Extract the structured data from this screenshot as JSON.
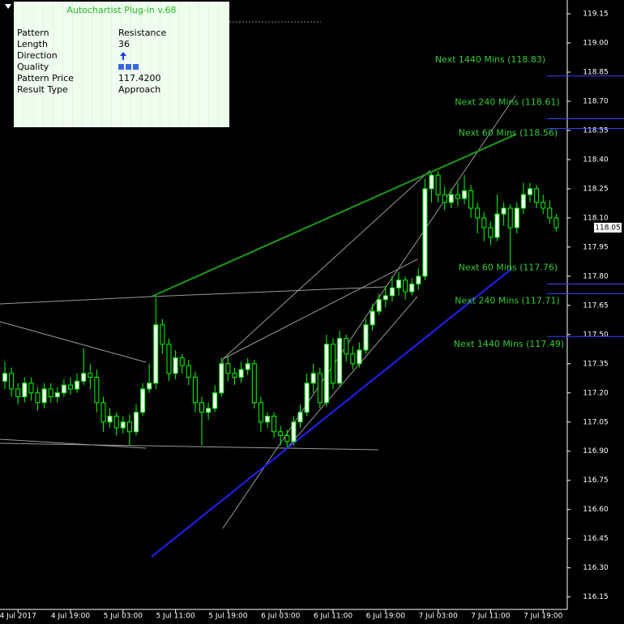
{
  "chart_data": {
    "type": "candlestick",
    "categories": [
      null,
      null,
      "4 Jul 2017",
      null,
      null,
      null,
      null,
      null,
      null,
      null,
      "4 Jul 19:00",
      null,
      null,
      null,
      null,
      null,
      null,
      null,
      "5 Jul 03:00",
      null,
      null,
      null,
      null,
      null,
      null,
      null,
      "5 Jul 11:00",
      null,
      null,
      null,
      null,
      null,
      null,
      null,
      "5 Jul 19:00",
      null,
      null,
      null,
      null,
      null,
      null,
      null,
      "6 Jul 03:00",
      null,
      null,
      null,
      null,
      null,
      null,
      null,
      "6 Jul 11:00",
      null,
      null,
      null,
      null,
      null,
      null,
      null,
      "6 Jul 19:00",
      null,
      null,
      null,
      null,
      null,
      null,
      null,
      "7 Jul 03:00",
      null,
      null,
      null,
      null,
      null,
      null,
      null,
      "7 Jul 11:00",
      null,
      null,
      null,
      null,
      null,
      null,
      null,
      "7 Jul 19:00",
      null,
      null
    ],
    "open": [
      117.26,
      117.3,
      117.22,
      117.18,
      117.25,
      117.2,
      117.15,
      117.22,
      117.18,
      117.2,
      117.24,
      117.22,
      117.26,
      117.3,
      117.28,
      117.15,
      117.05,
      117.08,
      117.02,
      117.05,
      117.0,
      117.1,
      117.22,
      117.25,
      117.55,
      117.45,
      117.3,
      117.38,
      117.34,
      117.28,
      117.15,
      117.1,
      117.12,
      117.2,
      117.35,
      117.3,
      117.28,
      117.32,
      117.35,
      117.15,
      117.05,
      117.08,
      117.0,
      116.98,
      116.95,
      117.05,
      117.1,
      117.25,
      117.3,
      117.15,
      117.45,
      117.25,
      117.48,
      117.4,
      117.35,
      117.42,
      117.55,
      117.62,
      117.68,
      117.7,
      117.74,
      117.78,
      117.72,
      117.76,
      117.8,
      118.25,
      118.32,
      118.22,
      118.18,
      118.22,
      118.2,
      118.24,
      118.15,
      118.1,
      118.05,
      118.0,
      118.12,
      118.15,
      118.05,
      118.15,
      118.22,
      118.25,
      118.18,
      118.15,
      118.1
    ],
    "high": [
      117.36,
      117.33,
      117.25,
      117.28,
      117.28,
      117.23,
      117.25,
      117.25,
      117.23,
      117.27,
      117.28,
      117.3,
      117.43,
      117.35,
      117.32,
      117.18,
      117.12,
      117.1,
      117.08,
      117.09,
      117.14,
      117.25,
      117.35,
      117.69,
      117.58,
      117.48,
      117.42,
      117.4,
      117.37,
      117.31,
      117.18,
      117.15,
      117.24,
      117.38,
      117.39,
      117.33,
      117.36,
      117.38,
      117.37,
      117.18,
      117.1,
      117.1,
      117.03,
      117.01,
      117.08,
      117.14,
      117.3,
      117.35,
      117.33,
      117.5,
      117.48,
      117.52,
      117.5,
      117.44,
      117.46,
      117.58,
      117.66,
      117.71,
      117.75,
      117.8,
      117.82,
      117.8,
      117.79,
      117.84,
      118.3,
      118.33,
      118.34,
      118.26,
      118.25,
      118.28,
      118.32,
      118.27,
      118.18,
      118.13,
      118.08,
      118.22,
      118.18,
      118.17,
      118.18,
      118.28,
      118.28,
      118.27,
      118.22,
      118.19,
      118.12
    ],
    "low": [
      117.22,
      117.18,
      117.14,
      117.15,
      117.16,
      117.11,
      117.12,
      117.15,
      117.15,
      117.18,
      117.19,
      117.2,
      117.24,
      117.22,
      117.1,
      117.0,
      117.02,
      116.98,
      116.99,
      116.93,
      116.98,
      117.08,
      117.2,
      117.22,
      117.4,
      117.26,
      117.27,
      117.3,
      117.24,
      117.1,
      116.93,
      117.06,
      117.1,
      117.18,
      117.26,
      117.24,
      117.25,
      117.29,
      117.12,
      117.0,
      117.02,
      116.97,
      116.93,
      116.92,
      116.93,
      117.02,
      117.08,
      117.2,
      117.12,
      117.13,
      117.22,
      117.23,
      117.36,
      117.32,
      117.33,
      117.4,
      117.52,
      117.6,
      117.64,
      117.67,
      117.7,
      117.68,
      117.7,
      117.73,
      117.78,
      118.18,
      118.18,
      118.14,
      118.15,
      118.16,
      118.17,
      118.1,
      118.02,
      117.98,
      117.96,
      117.98,
      118.06,
      117.83,
      118.02,
      118.12,
      118.18,
      118.15,
      118.12,
      118.07,
      118.03
    ],
    "close": [
      117.3,
      117.22,
      117.18,
      117.25,
      117.2,
      117.15,
      117.22,
      117.18,
      117.2,
      117.24,
      117.22,
      117.26,
      117.3,
      117.28,
      117.15,
      117.05,
      117.08,
      117.02,
      117.05,
      117.0,
      117.1,
      117.22,
      117.25,
      117.55,
      117.45,
      117.3,
      117.38,
      117.34,
      117.28,
      117.15,
      117.1,
      117.12,
      117.2,
      117.35,
      117.3,
      117.28,
      117.32,
      117.35,
      117.15,
      117.05,
      117.08,
      117.0,
      116.98,
      116.95,
      117.05,
      117.1,
      117.25,
      117.3,
      117.15,
      117.45,
      117.25,
      117.48,
      117.4,
      117.35,
      117.42,
      117.55,
      117.62,
      117.68,
      117.7,
      117.74,
      117.78,
      117.72,
      117.76,
      117.8,
      118.25,
      118.32,
      118.22,
      118.18,
      118.22,
      118.2,
      118.24,
      118.15,
      118.1,
      118.05,
      118.0,
      118.12,
      118.15,
      118.05,
      118.15,
      118.22,
      118.25,
      118.18,
      118.15,
      118.1,
      118.05
    ],
    "color": "#00ff00",
    "up_fill": "#ffffff",
    "down_fill": "#000000",
    "ylim": [
      116.086,
      119.221
    ],
    "yticks": [
      116.15,
      {
        "value": 116.3,
        "label": "116.30"
      },
      116.45,
      {
        "value": 116.6,
        "label": "116.60"
      },
      116.75,
      {
        "value": 116.9,
        "label": "116.90"
      },
      117.05,
      {
        "value": 117.2,
        "label": "117.20"
      },
      117.35,
      {
        "value": 117.5,
        "label": "117.50"
      },
      117.65,
      {
        "value": 117.8,
        "label": "117.80"
      },
      117.95,
      {
        "value": 118.1,
        "label": "118.10"
      },
      118.25,
      {
        "value": 118.4,
        "label": "118.40"
      },
      118.55,
      {
        "value": 118.7,
        "label": "118.70"
      },
      118.85,
      {
        "value": 119.0,
        "label": "119.00"
      },
      119.15
    ],
    "current_price": 118.05,
    "projections": [
      {
        "label": "Next 1440 Mins (118.83)",
        "value": 118.83
      },
      {
        "label": "Next 240 Mins (118.61)",
        "value": 118.61
      },
      {
        "label": "Next 60 Mins (118.56)",
        "value": 118.56
      },
      {
        "label": "Next 60 Mins (117.76)",
        "value": 117.76
      },
      {
        "label": "Next 240 Mins (117.71)",
        "value": 117.71
      },
      {
        "label": "Next 1440 Mins (117.49)",
        "value": 117.49
      }
    ],
    "projection_text_color": "#33cc33",
    "projection_line_color": "#3344ff"
  },
  "panel": {
    "title": "Autochartist Plug-in v.68",
    "rows": [
      [
        "Pattern",
        "Resistance"
      ],
      [
        "Length",
        "36"
      ],
      [
        "Direction"
      ],
      [
        "Quality"
      ],
      [
        "Pattern Price",
        "117.4200"
      ],
      [
        "Result Type",
        "Approach"
      ]
    ]
  }
}
